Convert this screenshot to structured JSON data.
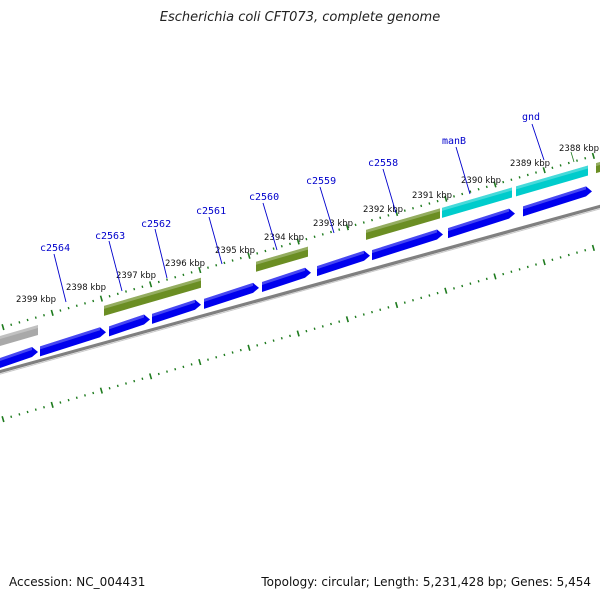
{
  "title": "Escherichia coli CFT073, complete genome",
  "footer": {
    "accession": "Accession: NC_004431",
    "summary": "Topology: circular; Length: 5,231,428 bp; Genes: 5,454"
  },
  "colors": {
    "cds": "#0000ee",
    "trna": "#6b8e23",
    "rrna": "#00cccc",
    "other": "#a9a9a9",
    "backbone": "#808080",
    "ticks": "#1e7b1e",
    "gene_label": "#0000cc"
  },
  "position_labels": [
    "2388 kbp",
    "2389 kbp",
    "2390 kbp",
    "2391 kbp",
    "2392 kbp",
    "2393 kbp",
    "2394 kbp",
    "2395 kbp",
    "2396 kbp",
    "2397 kbp",
    "2398 kbp",
    "2399 kbp"
  ],
  "gene_labels": [
    "gnd",
    "manB",
    "c2558",
    "c2559",
    "c2560",
    "c2561",
    "c2562",
    "c2563",
    "c2564"
  ]
}
